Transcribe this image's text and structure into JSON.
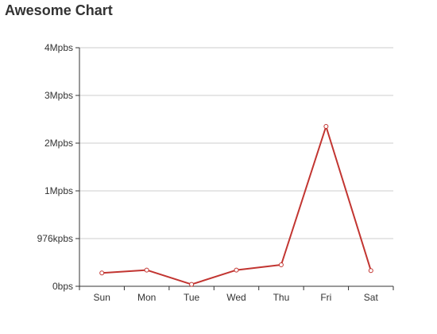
{
  "chart_data": {
    "type": "line",
    "title": "Awesome Chart",
    "xlabel": "",
    "ylabel": "",
    "categories": [
      "Sun",
      "Mon",
      "Tue",
      "Wed",
      "Thu",
      "Fri",
      "Sat"
    ],
    "series": [
      {
        "values": [
          0.28,
          0.34,
          0.04,
          0.34,
          0.45,
          3.35,
          0.33
        ],
        "color": "#c23531"
      }
    ],
    "y_ticks": [
      {
        "value": 0,
        "label": "0bps"
      },
      {
        "value": 1,
        "label": "976kpbs"
      },
      {
        "value": 2,
        "label": "1Mpbs"
      },
      {
        "value": 3,
        "label": "2Mpbs"
      },
      {
        "value": 4,
        "label": "3Mpbs"
      },
      {
        "value": 5,
        "label": "4Mpbs"
      }
    ],
    "ylim": [
      0,
      5
    ],
    "grid": true,
    "legend": "none",
    "colors": {
      "line": "#c23531",
      "grid": "#cccccc",
      "axis": "#333333"
    }
  }
}
